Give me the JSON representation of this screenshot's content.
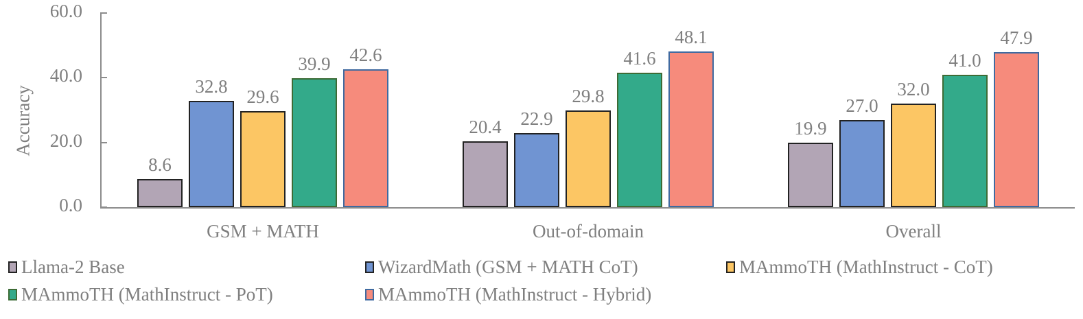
{
  "chart_data": {
    "type": "bar",
    "title": "",
    "xlabel": "",
    "ylabel": "Accuracy",
    "ylim": [
      0,
      60
    ],
    "yticks": [
      "0.0",
      "20.0",
      "40.0",
      "60.0"
    ],
    "grid": false,
    "legend_position": "bottom",
    "categories": [
      "GSM + MATH",
      "Out-of-domain",
      "Overall"
    ],
    "series": [
      {
        "name": "Llama-2 Base",
        "color": "#b2a5b5",
        "border": "#222222",
        "values": [
          8.6,
          20.4,
          19.9
        ],
        "labels": [
          "8.6",
          "20.4",
          "19.9"
        ]
      },
      {
        "name": "WizardMath (GSM + MATH CoT)",
        "color": "#7094d2",
        "border": "#222222",
        "values": [
          32.8,
          22.9,
          27.0
        ],
        "labels": [
          "32.8",
          "22.9",
          "27.0"
        ]
      },
      {
        "name": "MAmmoTH (MathInstruct - CoT)",
        "color": "#fcc664",
        "border": "#222222",
        "values": [
          29.6,
          29.8,
          32.0
        ],
        "labels": [
          "29.6",
          "29.8",
          "32.0"
        ]
      },
      {
        "name": "MAmmoTH (MathInstruct - PoT)",
        "color": "#33aa8a",
        "border": "#3d6b35",
        "values": [
          39.9,
          41.6,
          41.0
        ],
        "labels": [
          "39.9",
          "41.6",
          "41.0"
        ]
      },
      {
        "name": "MAmmoTH (MathInstruct - Hybrid)",
        "color": "#f68b7c",
        "border": "#3f6aa0",
        "values": [
          42.6,
          48.1,
          47.9
        ],
        "labels": [
          "42.6",
          "48.1",
          "47.9"
        ]
      }
    ]
  }
}
